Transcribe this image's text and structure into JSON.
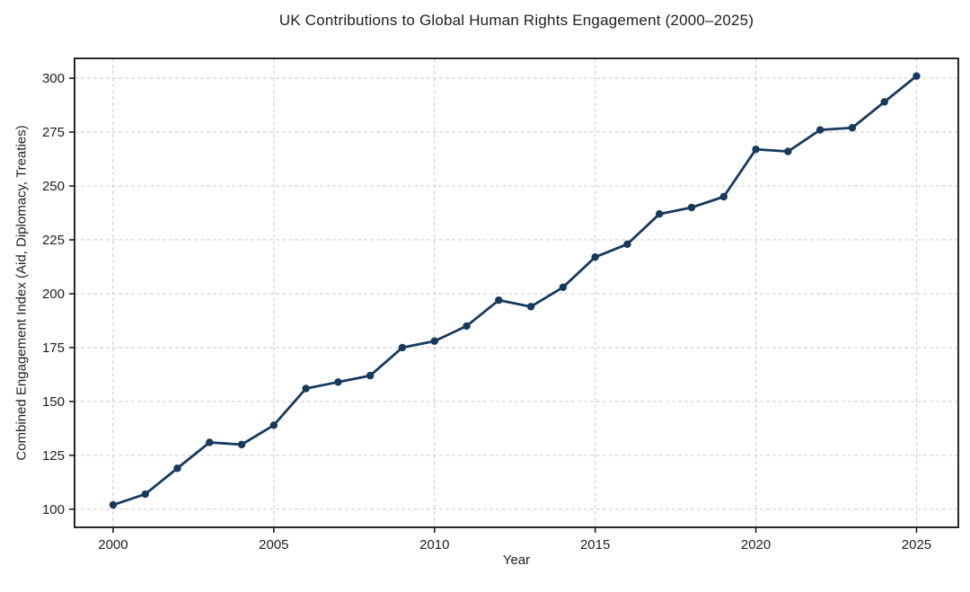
{
  "chart_data": {
    "type": "line",
    "title": "UK Contributions to Global Human Rights Engagement (2000–2025)",
    "xlabel": "Year",
    "ylabel": "Combined Engagement Index (Aid, Diplomacy, Treaties)",
    "x": [
      2000,
      2001,
      2002,
      2003,
      2004,
      2005,
      2006,
      2007,
      2008,
      2009,
      2010,
      2011,
      2012,
      2013,
      2014,
      2015,
      2016,
      2017,
      2018,
      2019,
      2020,
      2021,
      2022,
      2023,
      2024,
      2025
    ],
    "series": [
      {
        "name": "Combined Engagement Index",
        "values": [
          102,
          107,
          119,
          131,
          130,
          139,
          156,
          159,
          162,
          175,
          178,
          185,
          197,
          194,
          203,
          217,
          223,
          237,
          240,
          245,
          267,
          266,
          276,
          277,
          289,
          301
        ]
      }
    ],
    "x_ticks": [
      2000,
      2005,
      2010,
      2015,
      2020,
      2025
    ],
    "y_ticks": [
      100,
      125,
      150,
      175,
      200,
      225,
      250,
      275,
      300
    ],
    "xlim": [
      1998.8,
      2026.3
    ],
    "ylim": [
      91.6,
      309.2
    ],
    "grid": true,
    "grid_style": "dashed",
    "legend": "none",
    "line_color": "#16395e",
    "marker": "circle",
    "marker_color": "#16395e",
    "grid_color": "#d0d0d0",
    "axis_color": "#111111",
    "tick_label_color": "#1f1f1f",
    "background_color": "#ffffff"
  }
}
